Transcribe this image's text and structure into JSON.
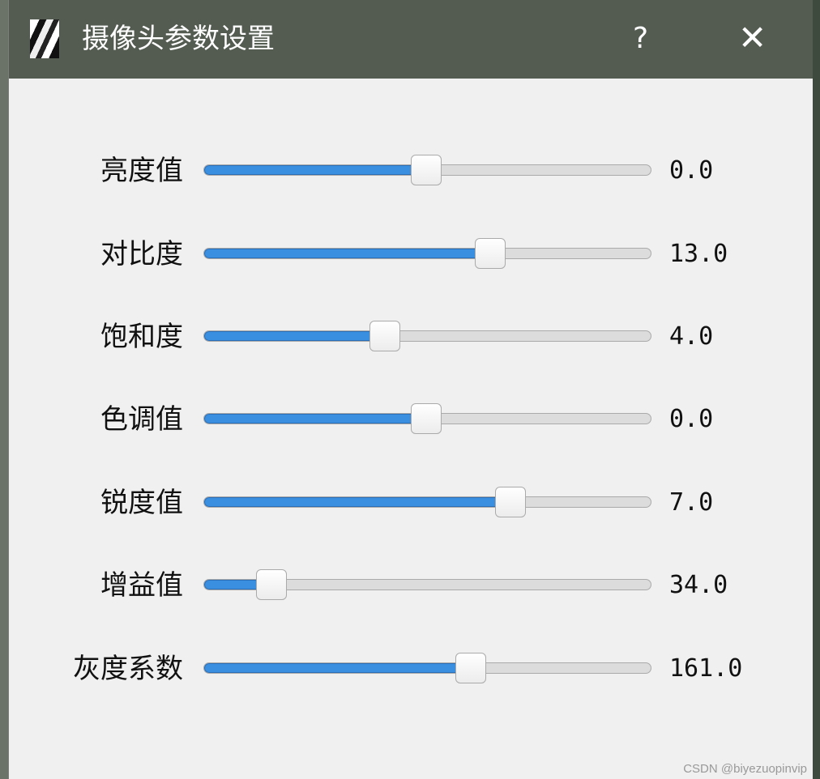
{
  "window": {
    "title": "摄像头参数设置",
    "help_label": "?",
    "close_label": "✕",
    "icon": "app-icon"
  },
  "sliders": [
    {
      "label": "亮度值",
      "value": "0.0",
      "position": 0.497
    },
    {
      "label": "对比度",
      "value": "13.0",
      "position": 0.64
    },
    {
      "label": "饱和度",
      "value": "4.0",
      "position": 0.405
    },
    {
      "label": "色调值",
      "value": "0.0",
      "position": 0.497
    },
    {
      "label": "锐度值",
      "value": "7.0",
      "position": 0.685
    },
    {
      "label": "增益值",
      "value": "34.0",
      "position": 0.152
    },
    {
      "label": "灰度系数",
      "value": "161.0",
      "position": 0.597
    }
  ],
  "watermark": "CSDN @biyezuopinvip",
  "colors": {
    "titlebar": "#545c52",
    "accent": "#3b8fe0",
    "background": "#f0f0f0"
  }
}
